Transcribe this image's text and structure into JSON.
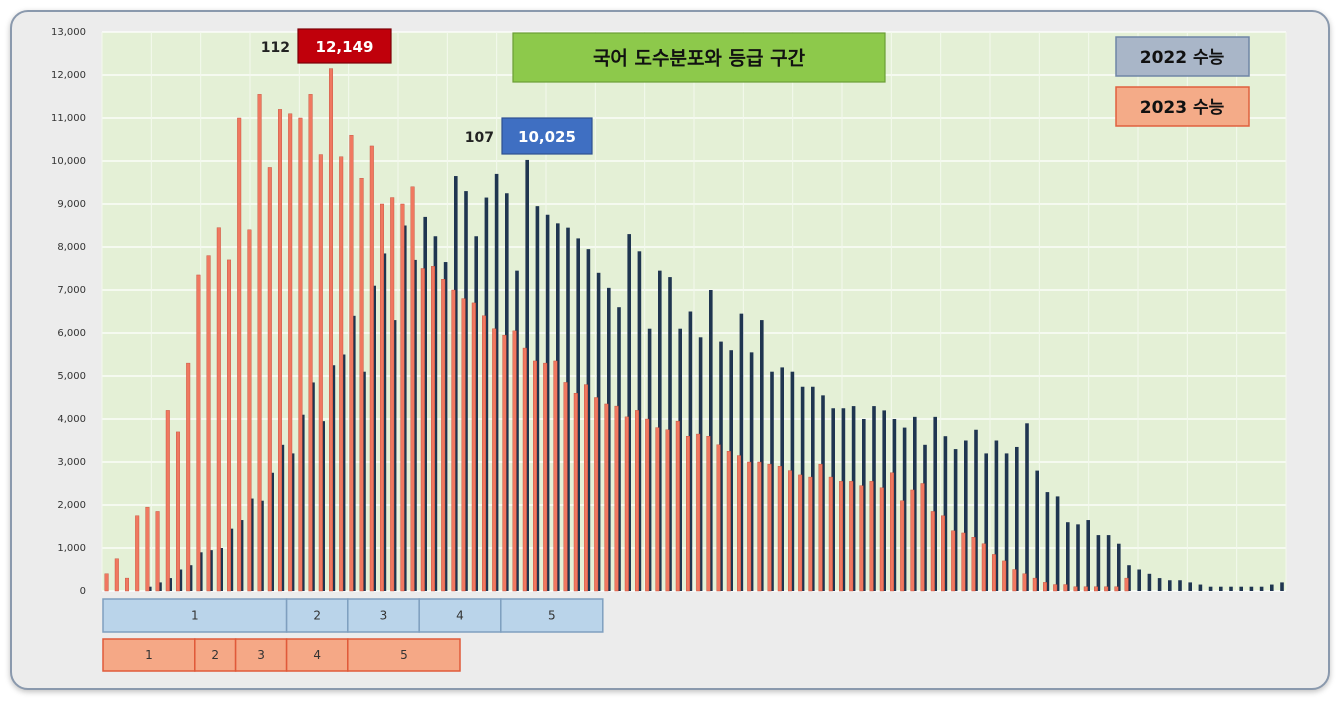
{
  "chart_data": {
    "type": "bar",
    "title": "국어 도수분포와 등급 구간",
    "ylim": [
      0,
      13000
    ],
    "yticks": [
      "0",
      "1,000",
      "2,000",
      "3,000",
      "4,000",
      "5,000",
      "6,000",
      "7,000",
      "8,000",
      "9,000",
      "10,000",
      "11,000",
      "12,000",
      "13,000"
    ],
    "legend": "top-right",
    "grid": true,
    "series": [
      {
        "name": "2022 수능",
        "color": "#1f3550",
        "values": [
          0,
          0,
          0,
          0,
          100,
          200,
          300,
          500,
          600,
          900,
          950,
          1000,
          1450,
          1650,
          2150,
          2100,
          2750,
          3400,
          3200,
          4100,
          4850,
          3950,
          5250,
          5500,
          6400,
          5100,
          7100,
          7850,
          6300,
          8500,
          7700,
          8700,
          8250,
          7650,
          9650,
          9300,
          8250,
          9150,
          9700,
          9250,
          7450,
          10025,
          8950,
          8750,
          8550,
          8450,
          8200,
          7950,
          7400,
          7050,
          6600,
          8300,
          7900,
          6100,
          7450,
          7300,
          6100,
          6500,
          5900,
          7000,
          5800,
          5600,
          6450,
          5550,
          6300,
          5100,
          5200,
          5100,
          4750,
          4750,
          4550,
          4250,
          4250,
          4300,
          4000,
          4300,
          4200,
          4000,
          3800,
          4050,
          3400,
          4050,
          3600,
          3300,
          3500,
          3750,
          3200,
          3500,
          3200,
          3350,
          3900,
          2800,
          2300,
          2200,
          1600,
          1550,
          1650,
          1300,
          1300,
          1100,
          600,
          500,
          400,
          300,
          250,
          250,
          200,
          150,
          100,
          100,
          100,
          100,
          100,
          100,
          150,
          200
        ]
      },
      {
        "name": "2023 수능",
        "color": "#f07860",
        "values": [
          400,
          750,
          300,
          1750,
          1950,
          1850,
          4200,
          3700,
          5300,
          7350,
          7800,
          8450,
          7700,
          11000,
          8400,
          11550,
          9850,
          11200,
          11100,
          11000,
          11550,
          10150,
          12149,
          10100,
          10600,
          9600,
          10350,
          9000,
          9150,
          9000,
          9400,
          7500,
          7550,
          7250,
          7000,
          6800,
          6700,
          6400,
          6100,
          5950,
          6050,
          5650,
          5350,
          5300,
          5350,
          4850,
          4600,
          4800,
          4500,
          4350,
          4300,
          4050,
          4200,
          4000,
          3800,
          3750,
          3950,
          3600,
          3650,
          3600,
          3400,
          3250,
          3150,
          3000,
          3000,
          2950,
          2900,
          2800,
          2700,
          2650,
          2950,
          2650,
          2550,
          2550,
          2450,
          2550,
          2400,
          2750,
          2100,
          2350,
          2500,
          1850,
          1750,
          1400,
          1350,
          1250,
          1100,
          850,
          700,
          500,
          400,
          300,
          200,
          150,
          150,
          100,
          100,
          100,
          100,
          100,
          300
        ]
      }
    ],
    "annotations": [
      {
        "score": "112",
        "value": "12,149",
        "series": "2023 수능",
        "index": 22
      },
      {
        "score": "107",
        "value": "10,025",
        "series": "2022 수능",
        "index": 41
      }
    ],
    "grade_bands": {
      "2022": [
        {
          "label": "1",
          "from": 0,
          "to": 17
        },
        {
          "label": "2",
          "from": 18,
          "to": 23
        },
        {
          "label": "3",
          "from": 24,
          "to": 30
        },
        {
          "label": "4",
          "from": 31,
          "to": 38
        },
        {
          "label": "5",
          "from": 39,
          "to": 48
        }
      ],
      "2023": [
        {
          "label": "1",
          "from": 0,
          "to": 8
        },
        {
          "label": "2",
          "from": 9,
          "to": 12
        },
        {
          "label": "3",
          "from": 13,
          "to": 17
        },
        {
          "label": "4",
          "from": 18,
          "to": 23
        },
        {
          "label": "5",
          "from": 24,
          "to": 34
        }
      ]
    },
    "colors": {
      "plot_bg": "#e4f0d6",
      "title_bg": "#8dc94b",
      "band_2022": "#bad4ea",
      "band_2023": "#f5a886",
      "callout_2023": "#c0000b",
      "callout_2022": "#3f6fc2",
      "legend_2022": "#a9b6c8",
      "legend_2023": "#f4ab88"
    }
  }
}
